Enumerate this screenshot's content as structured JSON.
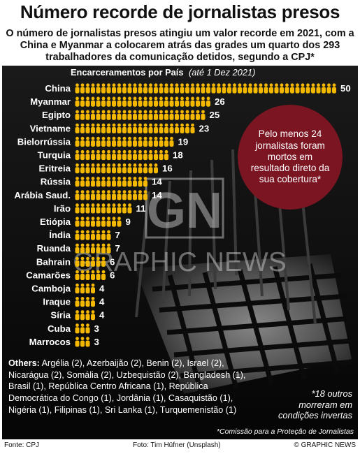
{
  "header": {
    "title": "Número recorde de jornalistas presos",
    "subtitle": "O número de jornalistas presos atingiu um valor recorde em 2021, com a China e Myanmar a colocarem atrás das grades um quarto dos 293 trabalhadores da comunicação detidos, segundo a CPJ*"
  },
  "chart_data": {
    "type": "bar",
    "title": "Encarceramentos por País",
    "subtitle": "(até 1 Dez 2021)",
    "categories": [
      "China",
      "Myanmar",
      "Egipto",
      "Vietname",
      "Bielorrússia",
      "Turquia",
      "Eritreia",
      "Rússia",
      "Arábia Saud.",
      "Irão",
      "Etiópia",
      "Índia",
      "Ruanda",
      "Bahrain",
      "Camarões",
      "Camboja",
      "Iraque",
      "Síria",
      "Cuba",
      "Marrocos"
    ],
    "values": [
      50,
      26,
      25,
      23,
      19,
      18,
      16,
      14,
      14,
      11,
      9,
      7,
      7,
      6,
      6,
      4,
      4,
      4,
      3,
      3
    ],
    "mark_color": "#f5b800"
  },
  "callout": {
    "text": "Pelo menos 24 jornalistas foram mortos em resultado direto da sua cobertura*",
    "color": "#7b1522"
  },
  "others": {
    "label": "Others:",
    "text": "Argélia (2), Azerbaijão (2), Benin (2), Israel (2), Nicarágua (2), Somália (2), Uzbequistão (2), Bangladesh (1), Brasil (1), República Centro Africana (1), República Democrática do Congo (1), Jordânia (1), Casaquistão (1), Nigéria (1), Filipinas (1), Sri Lanka (1), Turquemenistão (1)"
  },
  "note18": "*18 outros morreram em condições invertas",
  "cpj_note": "*Comissão para a Proteção de Jornalistas",
  "watermark": {
    "logo": "GN",
    "text": "GRAPHIC NEWS"
  },
  "footer": {
    "source": "Fonte: CPJ",
    "photo": "Foto: Tim Hüfner (Unsplash)",
    "copyright": "© GRAPHIC NEWS"
  }
}
